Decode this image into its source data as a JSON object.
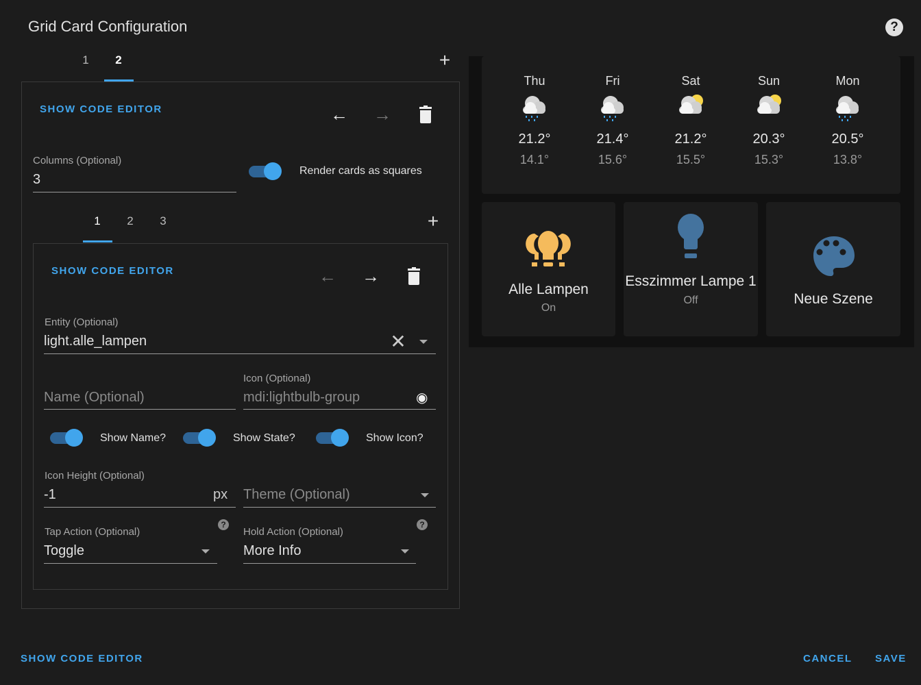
{
  "dialog": {
    "title": "Grid Card Configuration",
    "help_icon": "help-circle-icon"
  },
  "outer_tabs": [
    "1",
    "2"
  ],
  "outer_active": 1,
  "grid_editor": {
    "show_code_label": "SHOW CODE EDITOR",
    "columns_label": "Columns (Optional)",
    "columns_value": "3",
    "square_label": "Render cards as squares",
    "square_on": true
  },
  "inner_tabs": [
    "1",
    "2",
    "3"
  ],
  "inner_active": 0,
  "entity_editor": {
    "show_code_label": "SHOW CODE EDITOR",
    "entity_label": "Entity (Optional)",
    "entity_value": "light.alle_lampen",
    "name_placeholder": "Name (Optional)",
    "icon_label": "Icon (Optional)",
    "icon_value": "mdi:lightbulb-group",
    "show_name": "Show Name?",
    "show_state": "Show State?",
    "show_icon": "Show Icon?",
    "icon_height_label": "Icon Height (Optional)",
    "icon_height_value": "-1",
    "icon_height_unit": "px",
    "theme_placeholder": "Theme (Optional)",
    "tap_label": "Tap Action (Optional)",
    "tap_value": "Toggle",
    "hold_label": "Hold Action (Optional)",
    "hold_value": "More Info"
  },
  "footer": {
    "show_code": "SHOW CODE EDITOR",
    "cancel": "CANCEL",
    "save": "SAVE"
  },
  "preview": {
    "forecast": [
      {
        "day": "Thu",
        "icon": "rainy",
        "high": "21.2°",
        "low": "14.1°"
      },
      {
        "day": "Fri",
        "icon": "rainy",
        "high": "21.4°",
        "low": "15.6°"
      },
      {
        "day": "Sat",
        "icon": "partlycloudy",
        "high": "21.2°",
        "low": "15.5°"
      },
      {
        "day": "Sun",
        "icon": "partlycloudy",
        "high": "20.3°",
        "low": "15.3°"
      },
      {
        "day": "Mon",
        "icon": "rainy",
        "high": "20.5°",
        "low": "13.8°"
      }
    ],
    "entities": [
      {
        "name": "Alle Lampen",
        "state": "On",
        "icon": "lightbulb-group-icon",
        "color": "#f5bb5c"
      },
      {
        "name": "Esszimmer Lampe 1",
        "state": "Off",
        "icon": "lightbulb-icon",
        "color": "#44739e"
      },
      {
        "name": "Neue Szene",
        "state": "",
        "icon": "palette-icon",
        "color": "#44739e"
      }
    ]
  },
  "colors": {
    "accent": "#41a5ec",
    "background": "#1c1c1c"
  }
}
